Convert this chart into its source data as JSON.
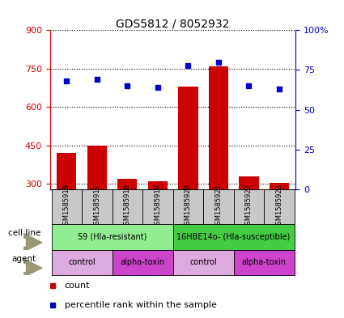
{
  "title": "GDS5812 / 8052932",
  "samples": [
    "GSM1585916",
    "GSM1585917",
    "GSM1585918",
    "GSM1585919",
    "GSM1585920",
    "GSM1585921",
    "GSM1585922",
    "GSM1585923"
  ],
  "counts": [
    420,
    450,
    320,
    310,
    680,
    760,
    330,
    305
  ],
  "percentiles": [
    68,
    69,
    65,
    64,
    78,
    80,
    65,
    63
  ],
  "ylim_left": [
    280,
    900
  ],
  "ylim_right": [
    0,
    100
  ],
  "yticks_left": [
    300,
    450,
    600,
    750,
    900
  ],
  "yticks_right": [
    0,
    25,
    50,
    75,
    100
  ],
  "ytick_labels_right": [
    "0",
    "25",
    "50",
    "75",
    "100%"
  ],
  "bar_color": "#cc0000",
  "dot_color": "#0000cc",
  "cell_line_labels": [
    {
      "text": "S9 (Hla-resistant)",
      "span": [
        0,
        3
      ],
      "color": "#90ee90"
    },
    {
      "text": "16HBE14o- (Hla-susceptible)",
      "span": [
        4,
        7
      ],
      "color": "#44cc44"
    }
  ],
  "agent_labels": [
    {
      "text": "control",
      "span": [
        0,
        1
      ],
      "color": "#ddaadd"
    },
    {
      "text": "alpha-toxin",
      "span": [
        2,
        3
      ],
      "color": "#cc44cc"
    },
    {
      "text": "control",
      "span": [
        4,
        5
      ],
      "color": "#ddaadd"
    },
    {
      "text": "alpha-toxin",
      "span": [
        6,
        7
      ],
      "color": "#cc44cc"
    }
  ],
  "sample_bg_color": "#c8c8c8",
  "legend_count_color": "#cc0000",
  "legend_pct_color": "#0000cc",
  "left_axis_color": "#cc0000",
  "right_axis_color": "#0000cc",
  "arrow_color": "#999977"
}
